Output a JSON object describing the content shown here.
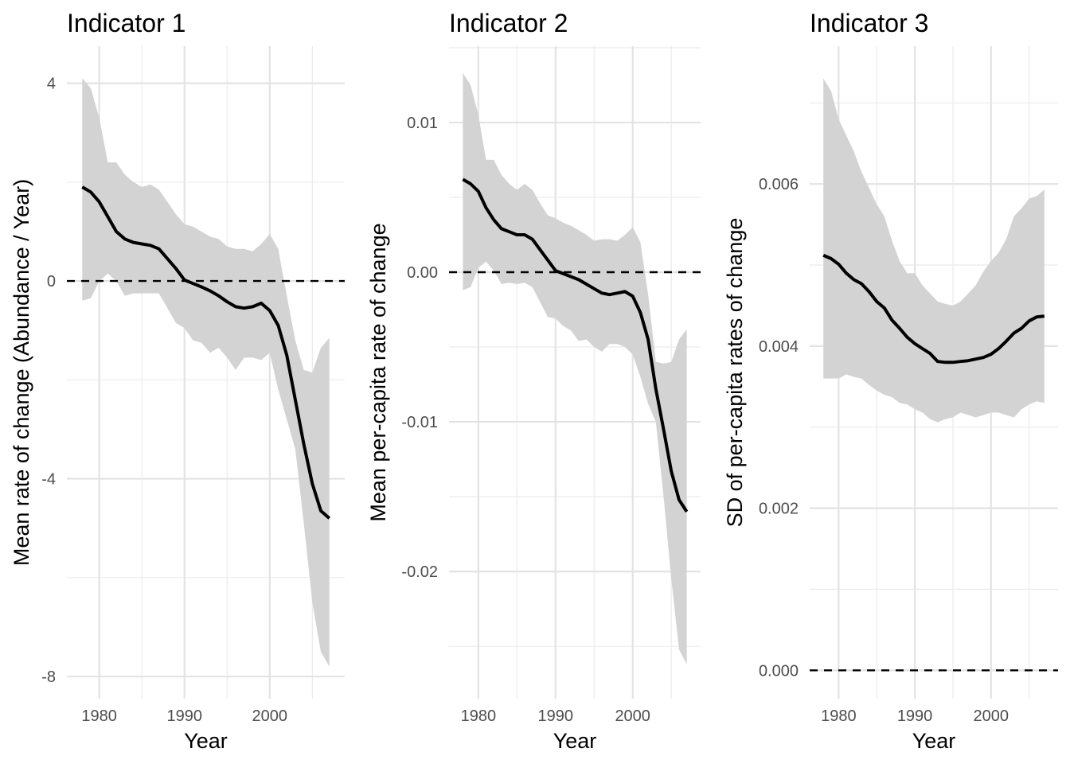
{
  "chart_data": [
    {
      "type": "line",
      "title": "Indicator 1",
      "xlabel": "Year",
      "ylabel": "Mean rate of change (Abundance / Year)",
      "xlim": [
        1976.2,
        2008.8
      ],
      "ylim": [
        -8.45,
        4.75
      ],
      "x_ticks": [
        1980,
        1990,
        2000
      ],
      "x_tick_labels": [
        "1980",
        "1990",
        "2000"
      ],
      "y_ticks": [
        -8,
        -4,
        0,
        4
      ],
      "y_tick_labels": [
        "-8",
        "-4",
        "0",
        "4"
      ],
      "reference_line": 0,
      "grid": true,
      "legend": "none",
      "x": [
        1978,
        1979,
        1980,
        1981,
        1982,
        1983,
        1984,
        1985,
        1986,
        1987,
        1988,
        1989,
        1990,
        1991,
        1992,
        1993,
        1994,
        1995,
        1996,
        1997,
        1998,
        1999,
        2000,
        2001,
        2002,
        2003,
        2004,
        2005,
        2006,
        2007
      ],
      "series": [
        {
          "role": "mean",
          "values": [
            1.9,
            1.8,
            1.6,
            1.3,
            1.0,
            0.85,
            0.78,
            0.75,
            0.72,
            0.65,
            0.45,
            0.25,
            0.02,
            -0.05,
            -0.12,
            -0.2,
            -0.3,
            -0.42,
            -0.52,
            -0.55,
            -0.52,
            -0.45,
            -0.6,
            -0.9,
            -1.5,
            -2.4,
            -3.3,
            -4.1,
            -4.65,
            -4.8
          ]
        },
        {
          "role": "upper",
          "values": [
            4.1,
            3.9,
            3.3,
            2.4,
            2.4,
            2.15,
            2.0,
            1.9,
            1.95,
            1.85,
            1.6,
            1.35,
            1.15,
            1.1,
            1.0,
            0.9,
            0.85,
            0.7,
            0.65,
            0.65,
            0.6,
            0.75,
            0.95,
            0.65,
            -0.3,
            -1.2,
            -1.8,
            -1.85,
            -1.35,
            -1.15
          ]
        },
        {
          "role": "lower",
          "values": [
            -0.4,
            -0.35,
            0.0,
            0.15,
            0.0,
            -0.3,
            -0.25,
            -0.25,
            -0.25,
            -0.25,
            -0.55,
            -0.85,
            -0.95,
            -1.2,
            -1.25,
            -1.45,
            -1.35,
            -1.55,
            -1.8,
            -1.55,
            -1.55,
            -1.6,
            -1.45,
            -2.2,
            -2.8,
            -3.4,
            -4.9,
            -6.5,
            -7.5,
            -7.8
          ]
        }
      ]
    },
    {
      "type": "line",
      "title": "Indicator 2",
      "xlabel": "Year",
      "ylabel": "Mean per-capita rate of change",
      "xlim": [
        1976.2,
        2008.8
      ],
      "ylim": [
        -0.0285,
        0.0151
      ],
      "x_ticks": [
        1980,
        1990,
        2000
      ],
      "x_tick_labels": [
        "1980",
        "1990",
        "2000"
      ],
      "y_ticks": [
        -0.02,
        -0.01,
        0.0,
        0.01
      ],
      "y_tick_labels": [
        "-0.02",
        "-0.01",
        "0.00",
        "0.01"
      ],
      "reference_line": 0,
      "grid": true,
      "legend": "none",
      "x": [
        1978,
        1979,
        1980,
        1981,
        1982,
        1983,
        1984,
        1985,
        1986,
        1987,
        1988,
        1989,
        1990,
        1991,
        1992,
        1993,
        1994,
        1995,
        1996,
        1997,
        1998,
        1999,
        2000,
        2001,
        2002,
        2003,
        2004,
        2005,
        2006,
        2007
      ],
      "series": [
        {
          "role": "mean",
          "values": [
            0.0062,
            0.0059,
            0.0054,
            0.0043,
            0.0035,
            0.0029,
            0.0027,
            0.0025,
            0.0025,
            0.0022,
            0.0015,
            0.0008,
            0.0001,
            -0.0001,
            -0.0003,
            -0.0005,
            -0.0008,
            -0.0011,
            -0.0014,
            -0.0015,
            -0.0014,
            -0.0013,
            -0.0016,
            -0.0027,
            -0.0045,
            -0.0078,
            -0.0105,
            -0.0133,
            -0.0152,
            -0.016
          ]
        },
        {
          "role": "upper",
          "values": [
            0.0133,
            0.0125,
            0.0105,
            0.0075,
            0.0075,
            0.0065,
            0.0059,
            0.0055,
            0.0059,
            0.0055,
            0.0046,
            0.0038,
            0.0036,
            0.0033,
            0.0031,
            0.0028,
            0.0025,
            0.0021,
            0.0022,
            0.0022,
            0.0021,
            0.0025,
            0.003,
            0.002,
            -0.0015,
            -0.006,
            -0.0061,
            -0.006,
            -0.0045,
            -0.0038
          ]
        },
        {
          "role": "lower",
          "values": [
            -0.0012,
            -0.001,
            0.0003,
            0.0007,
            0.0001,
            -0.0008,
            -0.0007,
            -0.0008,
            -0.0007,
            -0.001,
            -0.002,
            -0.003,
            -0.0031,
            -0.0036,
            -0.0039,
            -0.0046,
            -0.0045,
            -0.005,
            -0.0053,
            -0.0048,
            -0.0048,
            -0.005,
            -0.0055,
            -0.007,
            -0.0088,
            -0.01,
            -0.015,
            -0.0205,
            -0.0252,
            -0.0262
          ]
        }
      ]
    },
    {
      "type": "line",
      "title": "Indicator 3",
      "xlabel": "Year",
      "ylabel": "SD of per-capita rates of change",
      "xlim": [
        1976.2,
        2008.8
      ],
      "ylim": [
        -0.00035,
        0.0077
      ],
      "x_ticks": [
        1980,
        1990,
        2000
      ],
      "x_tick_labels": [
        "1980",
        "1990",
        "2000"
      ],
      "y_ticks": [
        0.0,
        0.002,
        0.004,
        0.006
      ],
      "y_tick_labels": [
        "0.000",
        "0.002",
        "0.004",
        "0.006"
      ],
      "reference_line": 0,
      "grid": true,
      "legend": "none",
      "x": [
        1978,
        1979,
        1980,
        1981,
        1982,
        1983,
        1984,
        1985,
        1986,
        1987,
        1988,
        1989,
        1990,
        1991,
        1992,
        1993,
        1994,
        1995,
        1996,
        1997,
        1998,
        1999,
        2000,
        2001,
        2002,
        2003,
        2004,
        2005,
        2006,
        2007
      ],
      "series": [
        {
          "role": "mean",
          "values": [
            0.00512,
            0.00508,
            0.00501,
            0.0049,
            0.00482,
            0.00477,
            0.00467,
            0.00455,
            0.00447,
            0.00432,
            0.00422,
            0.00411,
            0.00403,
            0.00397,
            0.00391,
            0.00381,
            0.0038,
            0.0038,
            0.00381,
            0.00382,
            0.00384,
            0.00386,
            0.0039,
            0.00397,
            0.00406,
            0.00416,
            0.00422,
            0.00431,
            0.00436,
            0.00437
          ]
        },
        {
          "role": "upper",
          "values": [
            0.0073,
            0.00715,
            0.0068,
            0.0066,
            0.0064,
            0.00615,
            0.00595,
            0.00575,
            0.0056,
            0.0053,
            0.00505,
            0.0049,
            0.0049,
            0.00475,
            0.00465,
            0.00455,
            0.00452,
            0.0045,
            0.00455,
            0.00465,
            0.00475,
            0.00492,
            0.00505,
            0.00515,
            0.00532,
            0.0056,
            0.0057,
            0.00582,
            0.00585,
            0.00593
          ]
        },
        {
          "role": "lower",
          "values": [
            0.0036,
            0.0036,
            0.0036,
            0.00365,
            0.00362,
            0.0036,
            0.00352,
            0.00345,
            0.0034,
            0.00337,
            0.0033,
            0.00328,
            0.00322,
            0.00318,
            0.0031,
            0.00306,
            0.0031,
            0.00312,
            0.00318,
            0.00315,
            0.00312,
            0.00315,
            0.00318,
            0.00318,
            0.00315,
            0.00312,
            0.00322,
            0.00328,
            0.00332,
            0.0033
          ]
        }
      ]
    }
  ]
}
